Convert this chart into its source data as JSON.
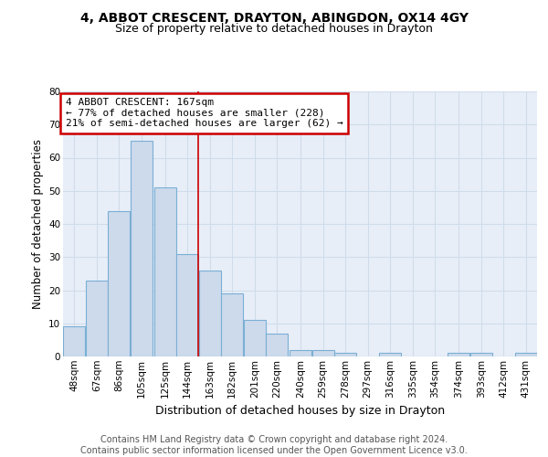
{
  "title_line1": "4, ABBOT CRESCENT, DRAYTON, ABINGDON, OX14 4GY",
  "title_line2": "Size of property relative to detached houses in Drayton",
  "xlabel": "Distribution of detached houses by size in Drayton",
  "ylabel": "Number of detached properties",
  "bar_left_edges": [
    48,
    67,
    86,
    105,
    125,
    144,
    163,
    182,
    201,
    220,
    240,
    259,
    278,
    297,
    316,
    335,
    354,
    374,
    393,
    412,
    431
  ],
  "bar_heights": [
    9,
    23,
    44,
    65,
    51,
    31,
    26,
    19,
    11,
    7,
    2,
    2,
    1,
    0,
    1,
    0,
    0,
    1,
    1,
    0,
    1
  ],
  "bin_width": 19,
  "bar_facecolor": "#ccdaec",
  "bar_edgecolor": "#7aafd4",
  "vline_x": 163,
  "vline_color": "#cc0000",
  "annotation_text": "4 ABBOT CRESCENT: 167sqm\n← 77% of detached houses are smaller (228)\n21% of semi-detached houses are larger (62) →",
  "annotation_box_edgecolor": "#cc0000",
  "annotation_box_facecolor": "#ffffff",
  "ylim": [
    0,
    80
  ],
  "yticks": [
    0,
    10,
    20,
    30,
    40,
    50,
    60,
    70,
    80
  ],
  "tick_labels": [
    "48sqm",
    "67sqm",
    "86sqm",
    "105sqm",
    "125sqm",
    "144sqm",
    "163sqm",
    "182sqm",
    "201sqm",
    "220sqm",
    "240sqm",
    "259sqm",
    "278sqm",
    "297sqm",
    "316sqm",
    "335sqm",
    "354sqm",
    "374sqm",
    "393sqm",
    "412sqm",
    "431sqm"
  ],
  "grid_color": "#d0dcea",
  "background_color": "#e8eef8",
  "footer_text": "Contains HM Land Registry data © Crown copyright and database right 2024.\nContains public sector information licensed under the Open Government Licence v3.0.",
  "title_fontsize": 10,
  "subtitle_fontsize": 9,
  "xlabel_fontsize": 9,
  "ylabel_fontsize": 8.5,
  "tick_fontsize": 7.5,
  "footer_fontsize": 7
}
